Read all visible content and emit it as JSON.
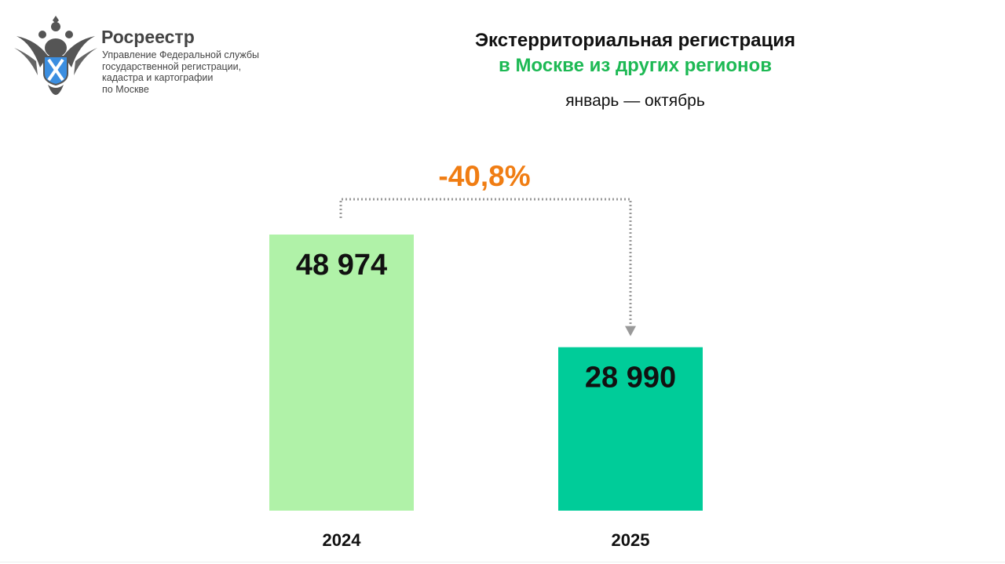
{
  "header": {
    "org_name": "Росреестр",
    "org_subtitle": [
      "Управление Федеральной службы",
      "государственной регистрации,",
      "кадастра и картографии",
      "по Москве"
    ],
    "logo": "double-headed-eagle-emblem"
  },
  "chart_data": {
    "type": "bar",
    "title": "Экстерриториальная регистрация",
    "subtitle": "в Москве из других регионов",
    "period": "январь — октябрь",
    "categories": [
      "2024",
      "2025"
    ],
    "values": [
      48974,
      28990
    ],
    "value_labels": [
      "48 974",
      "28 990"
    ],
    "colors": [
      "#b0f2a8",
      "#00cc99"
    ],
    "change_label": "-40,8%",
    "change_color": "#f07d13",
    "ylim": [
      0,
      48974
    ],
    "grid": false,
    "legend": "none"
  }
}
